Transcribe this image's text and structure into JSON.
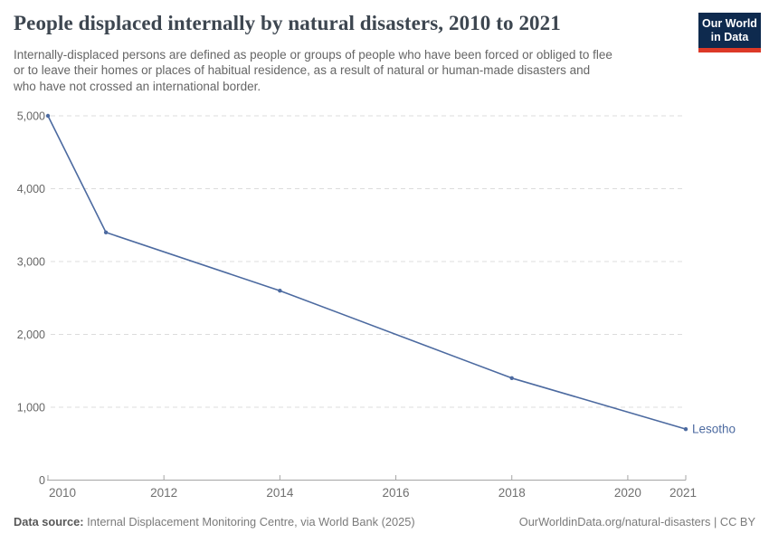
{
  "header": {
    "title": "People displaced internally by natural disasters, 2010 to 2021",
    "subtitle_lines": [
      "Internally-displaced persons are defined as people or groups of people who have been forced or obliged to flee",
      "or to leave their homes or places of habitual residence, as a result of natural or human-made disasters and",
      "who have not crossed an international border."
    ],
    "logo": {
      "line1": "Our World",
      "line2": "in Data",
      "bg_color": "#0e2a4e",
      "stripe_color": "#dc3927"
    }
  },
  "chart_data": {
    "type": "line",
    "title": "People displaced internally by natural disasters, 2010 to 2021",
    "series": [
      {
        "name": "Lesotho",
        "color": "#4c6aa0",
        "points": [
          {
            "year": 2010,
            "value": 5000
          },
          {
            "year": 2011,
            "value": 3400
          },
          {
            "year": 2014,
            "value": 2600
          },
          {
            "year": 2018,
            "value": 1400
          },
          {
            "year": 2021,
            "value": 700
          }
        ]
      }
    ],
    "xlim": [
      2010,
      2021
    ],
    "ylim": [
      0,
      5000
    ],
    "x_ticks": [
      2010,
      2012,
      2014,
      2016,
      2018,
      2020,
      2021
    ],
    "y_ticks": [
      0,
      1000,
      2000,
      3000,
      4000,
      5000
    ],
    "y_tick_labels": [
      "0",
      "1,000",
      "2,000",
      "3,000",
      "4,000",
      "5,000"
    ],
    "grid": "horizontal-dashed",
    "legend_position": "end-of-line-label",
    "end_label": "Lesotho",
    "colors": {
      "grid": "#dcdcdc",
      "axis": "#a5a5a5",
      "tick_label": "#707070"
    }
  },
  "footer": {
    "source_label": "Data source:",
    "source_text": " Internal Displacement Monitoring Centre, via World Bank (2025)",
    "link_text": "OurWorldinData.org/natural-disasters | CC BY"
  }
}
